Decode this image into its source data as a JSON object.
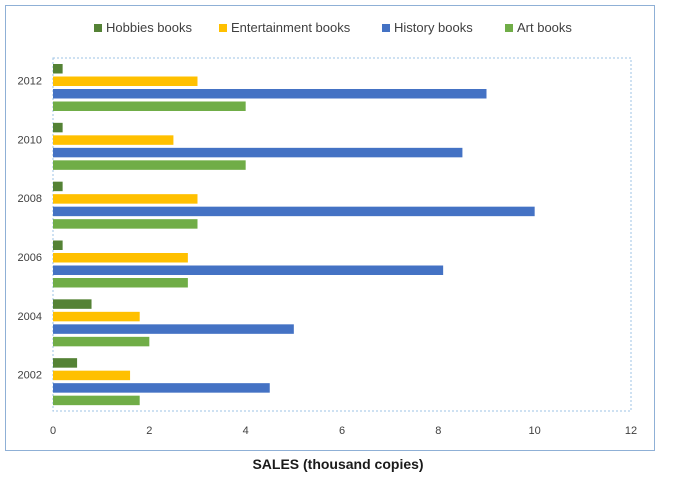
{
  "chart_data": {
    "type": "bar",
    "orientation": "horizontal",
    "categories": [
      "2002",
      "2004",
      "2006",
      "2008",
      "2010",
      "2012"
    ],
    "series": [
      {
        "name": "Hobbies books",
        "color": "#548235",
        "values": [
          0.5,
          0.8,
          0.2,
          0.2,
          0.2,
          0.2
        ]
      },
      {
        "name": "Entertainment books",
        "color": "#ffc000",
        "values": [
          1.6,
          1.8,
          2.8,
          3.0,
          2.5,
          3.0
        ]
      },
      {
        "name": "History books",
        "color": "#4472c4",
        "values": [
          4.5,
          5.0,
          8.1,
          10.0,
          8.5,
          9.0
        ]
      },
      {
        "name": "Art books",
        "color": "#70ad47",
        "values": [
          1.8,
          2.0,
          2.8,
          3.0,
          4.0,
          4.0
        ]
      }
    ],
    "x_ticks": [
      "0",
      "2",
      "4",
      "6",
      "8",
      "10",
      "12"
    ],
    "xlim": [
      0,
      12
    ],
    "xlabel": "SALES (thousand copies)",
    "ylabel": "",
    "title": "",
    "legend_position": "top",
    "grid": false
  }
}
